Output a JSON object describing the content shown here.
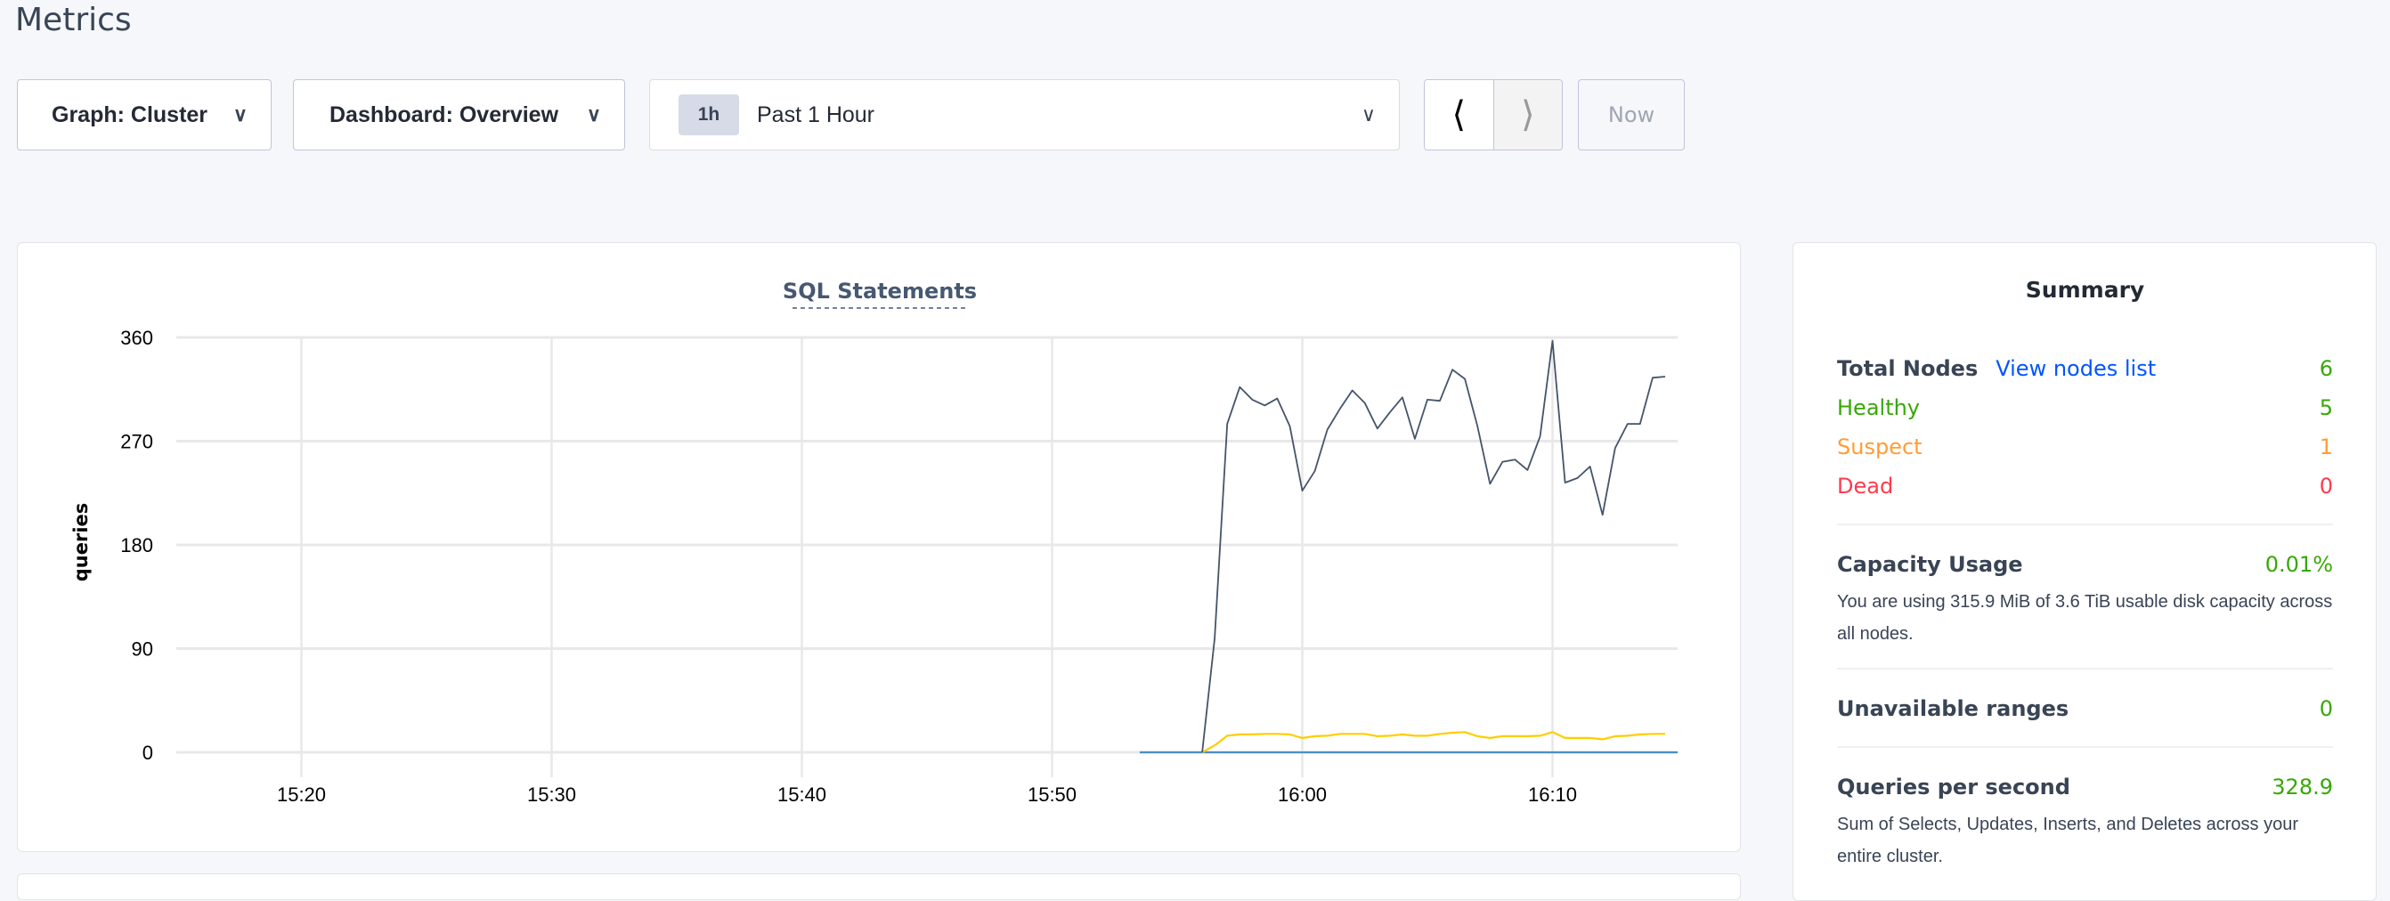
{
  "page": {
    "title": "Metrics"
  },
  "toolbar": {
    "graph_label": "Graph: Cluster",
    "dashboard_label": "Dashboard: Overview",
    "time_badge": "1h",
    "time_label": "Past 1 Hour",
    "prev_icon": "chevron-left-icon",
    "next_icon": "chevron-right-icon",
    "now_label": "Now"
  },
  "summary": {
    "title": "Summary",
    "total_nodes_label": "Total Nodes",
    "view_nodes_link": "View nodes list",
    "total_nodes": "6",
    "healthy_label": "Healthy",
    "healthy": "5",
    "suspect_label": "Suspect",
    "suspect": "1",
    "dead_label": "Dead",
    "dead": "0",
    "capacity_label": "Capacity Usage",
    "capacity": "0.01%",
    "capacity_desc": "You are using 315.9 MiB of 3.6 TiB usable disk capacity across all nodes.",
    "unavailable_label": "Unavailable ranges",
    "unavailable": "0",
    "qps_label": "Queries per second",
    "qps": "328.9",
    "qps_desc": "Sum of Selects, Updates, Inserts, and Deletes across your entire cluster."
  },
  "colors": {
    "green": "#37a806",
    "orange": "#ff9d33",
    "red": "#ff3b4e",
    "link": "#0055ff"
  },
  "chart_data": {
    "type": "line",
    "title": "SQL Statements",
    "ylabel": "queries",
    "xlabel": "",
    "ylim": [
      0,
      360
    ],
    "xlim": [
      "15:15",
      "16:15"
    ],
    "y_ticks": [
      "0",
      "90",
      "180",
      "270",
      "360"
    ],
    "x_ticks": [
      "15:20",
      "15:30",
      "15:40",
      "15:50",
      "16:00",
      "16:10"
    ],
    "grid": true,
    "interval_seconds": 30,
    "series": [
      {
        "color": "#44546a",
        "start": "15:56:00",
        "values": [
          0,
          99,
          285,
          317,
          306,
          301,
          307,
          283,
          227,
          244,
          280,
          298,
          314,
          303,
          281,
          295,
          308,
          272,
          306,
          305,
          332,
          324,
          283,
          233,
          252,
          254,
          245,
          274,
          357,
          234,
          238,
          248,
          206,
          264,
          285,
          285,
          325,
          326
        ]
      },
      {
        "color": "#ffcd02",
        "start": "15:56:00",
        "values": [
          0,
          6,
          14.4,
          15.5,
          15.5,
          16,
          16,
          15.5,
          12.4,
          14,
          14.4,
          16,
          16,
          16,
          14,
          14.4,
          15.5,
          14.4,
          14.4,
          16,
          17,
          17.5,
          14,
          12.4,
          14,
          14,
          14,
          14.4,
          17.5,
          12.4,
          12.4,
          12.4,
          11.3,
          14,
          14.4,
          15.5,
          16,
          16
        ]
      },
      {
        "color": "#4a90c9",
        "start": "15:53:30",
        "values": [
          0,
          0,
          0,
          0,
          0,
          0,
          0,
          0,
          0,
          0,
          0,
          0,
          0,
          0,
          0,
          0,
          0,
          0,
          0,
          0,
          0,
          0,
          0,
          0,
          0,
          0,
          0,
          0,
          0,
          0,
          0,
          0,
          0,
          0,
          0,
          0,
          0,
          0,
          0,
          0,
          0,
          0,
          0,
          0
        ]
      }
    ]
  }
}
